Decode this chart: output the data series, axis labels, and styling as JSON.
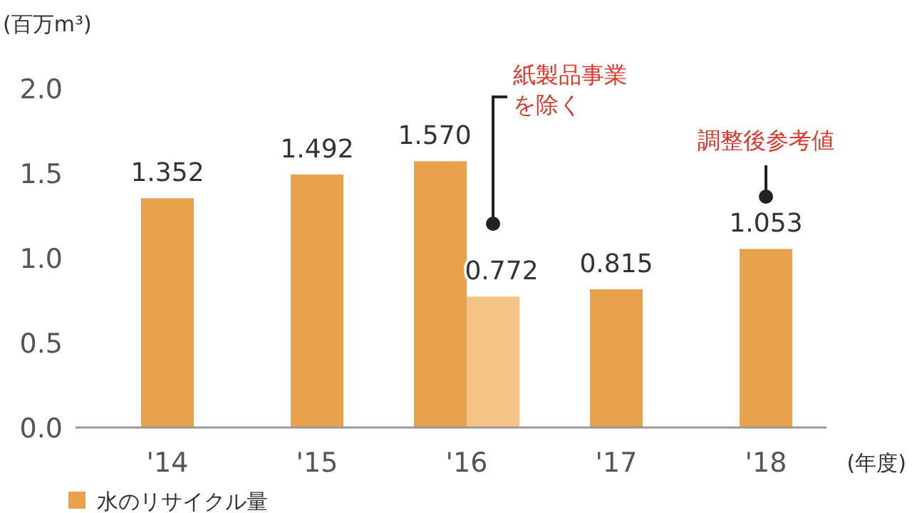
{
  "chart_data": {
    "type": "bar",
    "ylabel": "(百万m³)",
    "xlabel": "(年度)",
    "categories": [
      "'14",
      "'15",
      "'16",
      "'17",
      "'18"
    ],
    "series": [
      {
        "name": "水のリサイクル量",
        "color": "#e9a24c",
        "values": [
          1.352,
          1.492,
          1.57,
          0.815,
          1.053
        ],
        "value_labels": [
          "1.352",
          "1.492",
          "1.570",
          "0.815",
          "1.053"
        ]
      },
      {
        "color": "#f4c486",
        "values": [
          null,
          null,
          0.772,
          null,
          null
        ],
        "value_labels": [
          null,
          null,
          "0.772",
          null,
          null
        ]
      }
    ],
    "ylim": [
      0,
      2.0
    ],
    "yticks": [
      {
        "value": 0,
        "label": "0.0"
      },
      {
        "value": 0.5,
        "label": "0.5"
      },
      {
        "value": 1,
        "label": "1.0"
      },
      {
        "value": 1.5,
        "label": "1.5"
      },
      {
        "value": 2,
        "label": "2.0"
      }
    ],
    "legend": "bottom left",
    "annotations": [
      "紙製品事業を除く",
      "調整後参考値"
    ]
  }
}
